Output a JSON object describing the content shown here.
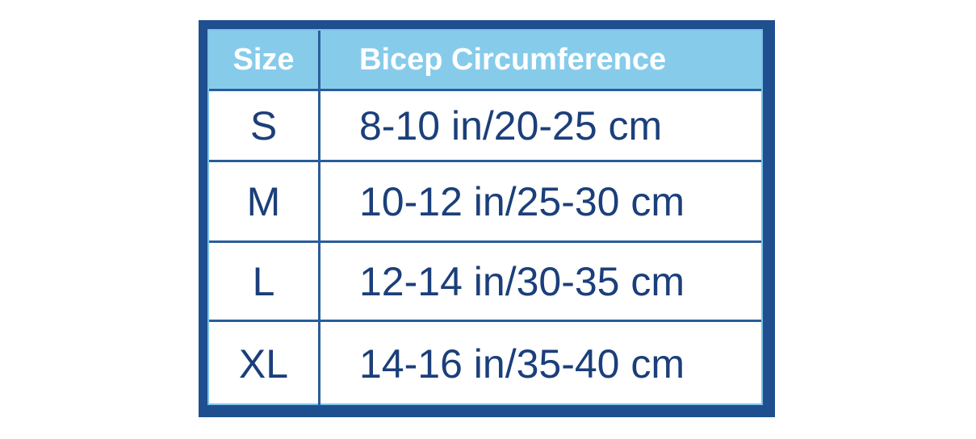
{
  "table": {
    "header": [
      "Size",
      "Bicep Circumference"
    ],
    "rows": [
      [
        "S",
        "8-10 in/20-25 cm"
      ],
      [
        "M",
        "10-12 in/25-30 cm"
      ],
      [
        "L",
        "12-14 in/30-35 cm"
      ],
      [
        "XL",
        "14-16 in/35-40 cm"
      ]
    ]
  }
}
